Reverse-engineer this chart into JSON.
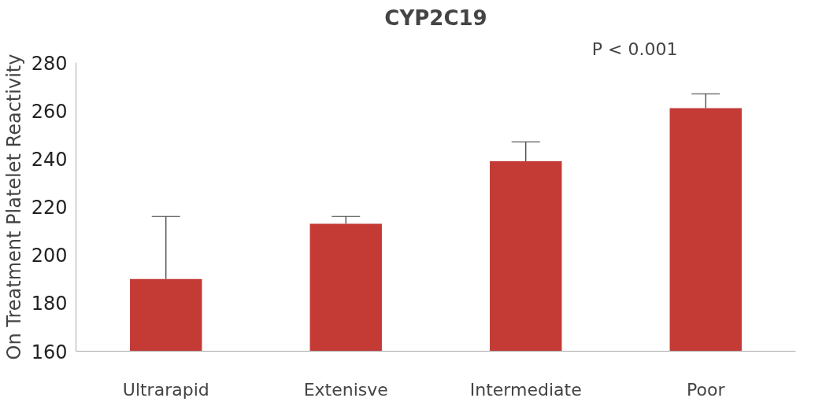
{
  "chart_data": {
    "type": "bar",
    "title": "CYP2C19",
    "ylabel": "On Treatment Platelet Reactivity",
    "categories": [
      "Ultrarapid",
      "Extenisve",
      "Intermediate",
      "Poor"
    ],
    "values": [
      190,
      213,
      239,
      261
    ],
    "errors": [
      [
        190,
        216
      ],
      [
        213,
        216
      ],
      [
        239,
        247
      ],
      [
        261,
        267
      ]
    ],
    "color": "#c43a35",
    "ylim": [
      160,
      280
    ],
    "yticks": [
      160,
      180,
      200,
      220,
      240,
      260,
      280
    ],
    "annotations": [
      "P < 0.001"
    ],
    "grid": false
  }
}
